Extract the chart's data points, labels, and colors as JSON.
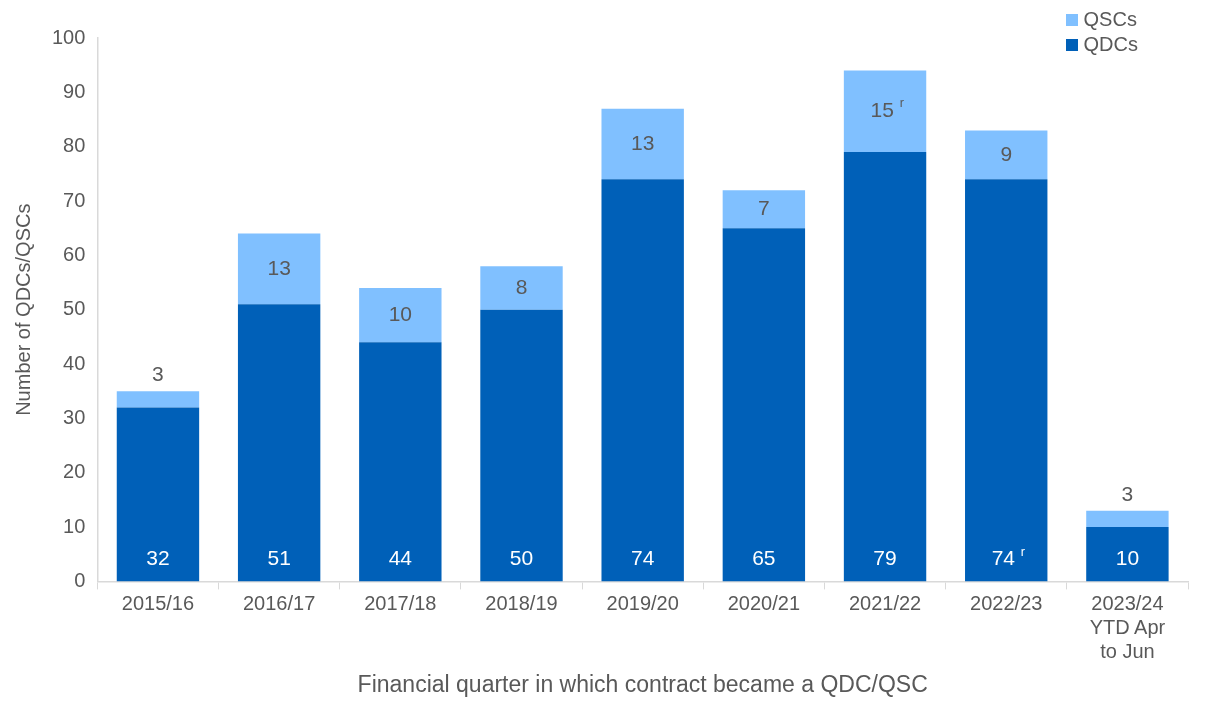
{
  "chart_data": {
    "type": "bar",
    "stacked": true,
    "xlabel": "Financial quarter in which contract became a QDC/QSC",
    "ylabel": "Number of QDCs/QSCs",
    "categories": [
      "2015/16",
      "2016/17",
      "2017/18",
      "2018/19",
      "2019/20",
      "2020/21",
      "2021/22",
      "2022/23",
      "2023/24\nYTD Apr\nto Jun"
    ],
    "series": [
      {
        "name": "QDCs",
        "color": "#0060b8",
        "values": [
          32,
          51,
          44,
          50,
          74,
          65,
          79,
          74,
          10
        ],
        "value_labels": [
          "32",
          "51",
          "44",
          "50",
          "74",
          "65",
          "79",
          "74 $^{r}$",
          "10"
        ]
      },
      {
        "name": "QSCs",
        "color": "#80c0ff",
        "values": [
          3,
          13,
          10,
          8,
          13,
          7,
          15,
          9,
          3
        ],
        "value_labels": [
          "3",
          "13",
          "10",
          "8",
          "13",
          "7",
          "15 $^{r}$",
          "9",
          "3"
        ]
      }
    ],
    "ylim": [
      0,
      100
    ],
    "yticks": [
      0,
      10,
      20,
      30,
      40,
      50,
      60,
      70,
      80,
      90,
      100
    ],
    "grid": false,
    "legend": "top right"
  }
}
